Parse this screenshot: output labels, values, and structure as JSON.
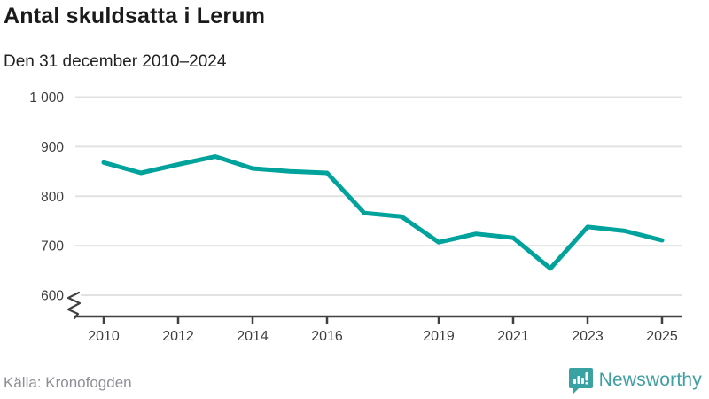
{
  "header": {
    "title": "Antal skuldsatta i Lerum",
    "subtitle": "Den 31 december 2010–2024"
  },
  "footer": {
    "source": "Källa: Kronofogden",
    "brand": "Newsworthy",
    "brand_icon": "bar-chart-speech-bubble-icon"
  },
  "colors": {
    "line": "#00a39b",
    "brand_teal": "#3ba2a3",
    "grid": "#e2e2e2",
    "axis": "#404040",
    "tick_text": "#3d3d3d",
    "muted_text": "#8e8e96"
  },
  "chart_data": {
    "type": "line",
    "title": "Antal skuldsatta i Lerum",
    "subtitle": "Den 31 december 2010–2024",
    "series": [
      {
        "name": "Antal skuldsatta",
        "x": [
          2010,
          2011,
          2012,
          2013,
          2014,
          2015,
          2016,
          2017,
          2018,
          2019,
          2020,
          2021,
          2022,
          2023,
          2024,
          2025
        ],
        "values": [
          868,
          847,
          864,
          880,
          856,
          850,
          847,
          766,
          759,
          707,
          724,
          716,
          654,
          738,
          730,
          711
        ]
      }
    ],
    "xlabel": "",
    "ylabel": "",
    "xlim": [
      2010,
      2025
    ],
    "ylim": [
      600,
      1000
    ],
    "yticks": [
      600,
      700,
      800,
      900,
      1000
    ],
    "ytick_labels": [
      "600",
      "700",
      "800",
      "900",
      "1 000"
    ],
    "xticks": [
      2010,
      2012,
      2014,
      2016,
      2019,
      2021,
      2023,
      2025
    ],
    "xtick_labels": [
      "2010",
      "2012",
      "2014",
      "2016",
      "2019",
      "2021",
      "2023",
      "2025"
    ],
    "grid": true,
    "axis_break": true,
    "legend": "none"
  }
}
